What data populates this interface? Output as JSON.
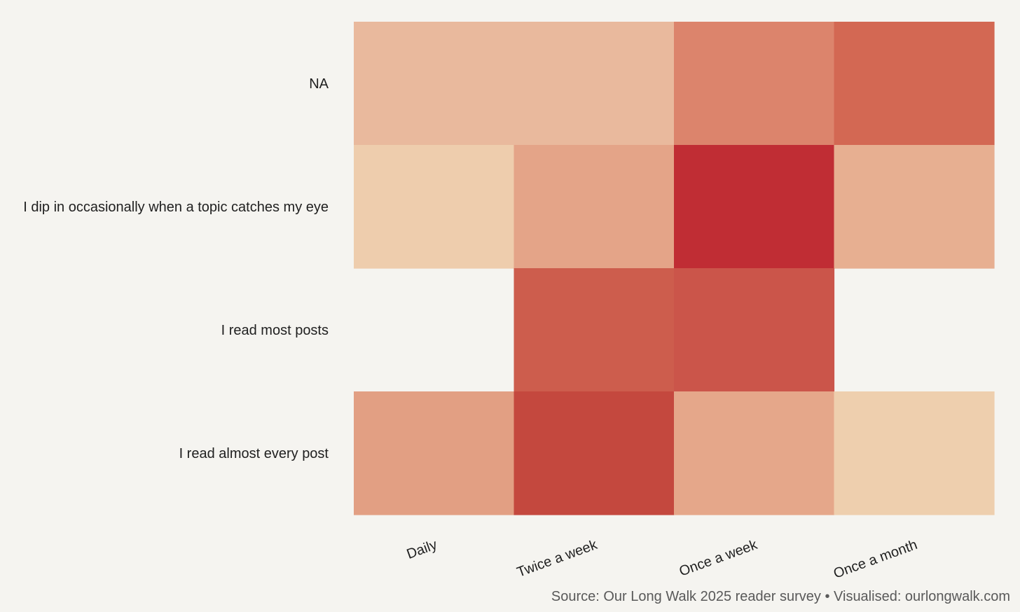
{
  "chart_data": {
    "type": "heatmap",
    "title": "",
    "xlabel": "",
    "ylabel": "",
    "x_categories": [
      "Daily",
      "Twice a week",
      "Once a week",
      "Once a month"
    ],
    "y_categories": [
      "NA",
      "I dip in occasionally when a topic catches my eye",
      "I read most posts",
      "I read almost every post"
    ],
    "cells": [
      {
        "y": "NA",
        "x": "Daily",
        "color": "#e9b99d"
      },
      {
        "y": "NA",
        "x": "Twice a week",
        "color": "#e9b99d"
      },
      {
        "y": "NA",
        "x": "Once a week",
        "color": "#dc846c"
      },
      {
        "y": "NA",
        "x": "Once a month",
        "color": "#d36853"
      },
      {
        "y": "I dip in occasionally when a topic catches my eye",
        "x": "Daily",
        "color": "#eecdad"
      },
      {
        "y": "I dip in occasionally when a topic catches my eye",
        "x": "Twice a week",
        "color": "#e4a488"
      },
      {
        "y": "I dip in occasionally when a topic catches my eye",
        "x": "Once a week",
        "color": "#c02d34"
      },
      {
        "y": "I dip in occasionally when a topic catches my eye",
        "x": "Once a month",
        "color": "#e7af91"
      },
      {
        "y": "I read most posts",
        "x": "Twice a week",
        "color": "#cd5d4d"
      },
      {
        "y": "I read most posts",
        "x": "Once a week",
        "color": "#cb554a"
      },
      {
        "y": "I read almost every post",
        "x": "Daily",
        "color": "#e29f83"
      },
      {
        "y": "I read almost every post",
        "x": "Twice a week",
        "color": "#c4483e"
      },
      {
        "y": "I read almost every post",
        "x": "Once a week",
        "color": "#e5a78a"
      },
      {
        "y": "I read almost every post",
        "x": "Once a month",
        "color": "#eecfae"
      }
    ],
    "legend": false,
    "grid": false
  },
  "source": "Source: Our Long Walk 2025 reader survey • Visualised: ourlongwalk.com",
  "colors": {
    "background": "#f5f4f0",
    "label_text": "#1f1f1f",
    "caption_text": "#595959"
  }
}
